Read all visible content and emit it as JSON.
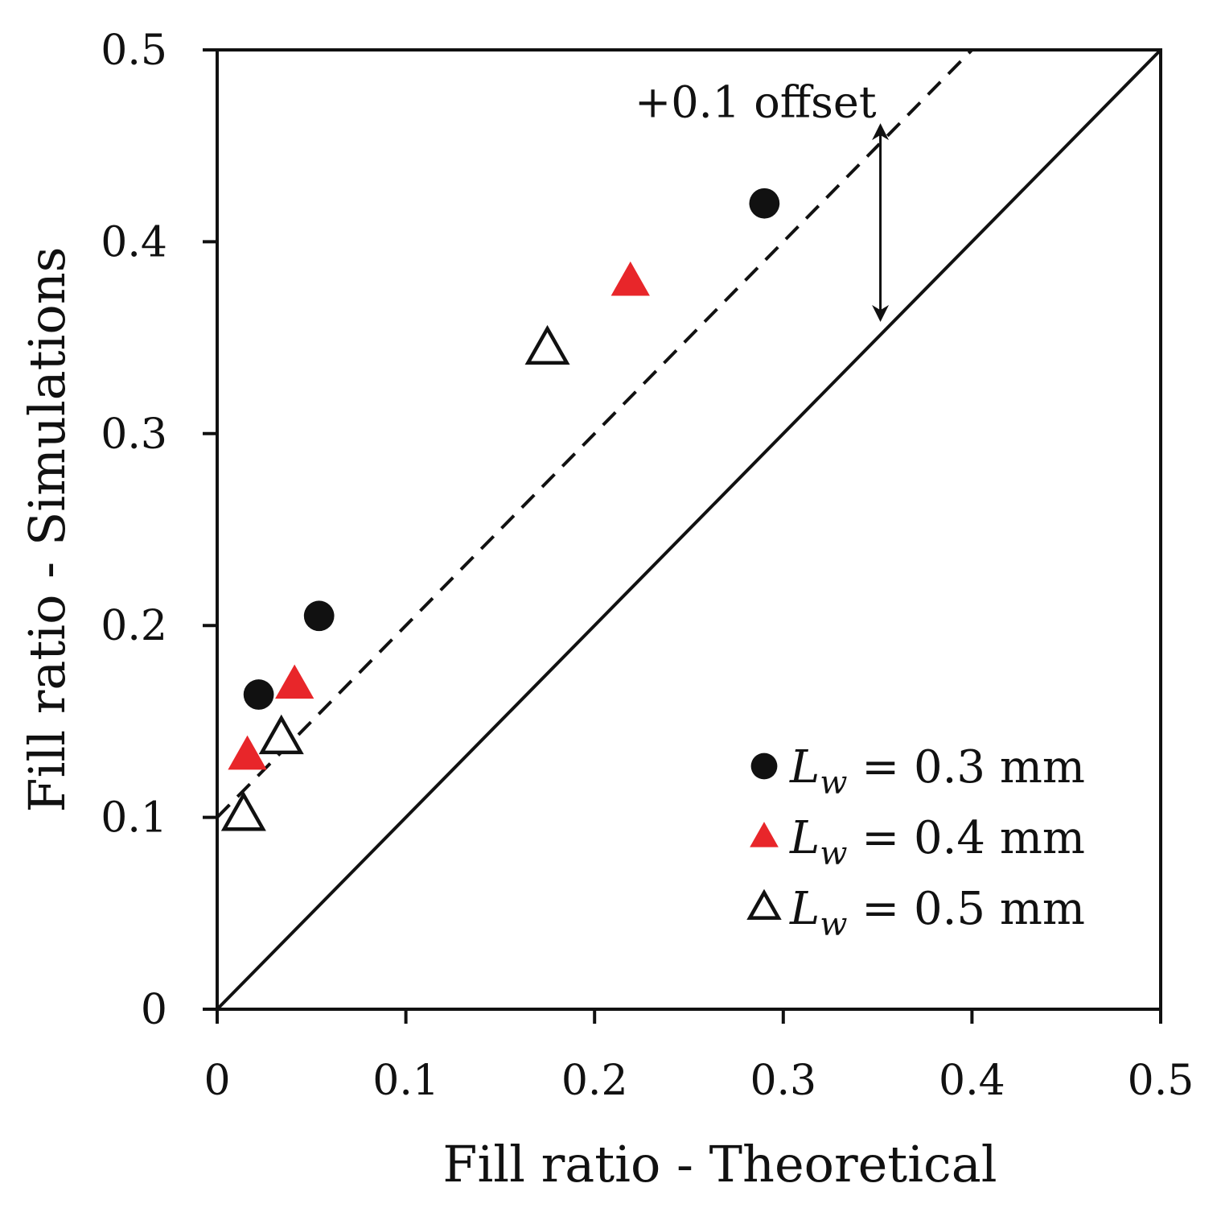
{
  "chart_data": {
    "type": "scatter",
    "title": "",
    "xlabel": "Fill ratio - Theoretical",
    "ylabel": "Fill ratio - Simulations",
    "xlim": [
      0,
      0.5
    ],
    "ylim": [
      0,
      0.5
    ],
    "x_ticks": [
      "0",
      "0.1",
      "0.2",
      "0.3",
      "0.4",
      "0.5"
    ],
    "y_ticks": [
      "0",
      "0.1",
      "0.2",
      "0.3",
      "0.4",
      "0.5"
    ],
    "grid": false,
    "legend_position": "bottom-right",
    "series": [
      {
        "name": "Lw = 0.3 mm",
        "legend_var": "L",
        "legend_sub": "w",
        "legend_rest": " = 0.3 mm",
        "marker": "circle-filled",
        "color": "#111111",
        "points": [
          {
            "x": 0.022,
            "y": 0.164
          },
          {
            "x": 0.054,
            "y": 0.205
          },
          {
            "x": 0.29,
            "y": 0.42
          }
        ]
      },
      {
        "name": "Lw = 0.4 mm",
        "legend_var": "L",
        "legend_sub": "w",
        "legend_rest": " = 0.4 mm",
        "marker": "triangle-filled",
        "color": "#e8262a",
        "points": [
          {
            "x": 0.016,
            "y": 0.132
          },
          {
            "x": 0.041,
            "y": 0.169
          },
          {
            "x": 0.219,
            "y": 0.379
          }
        ]
      },
      {
        "name": "Lw = 0.5 mm",
        "legend_var": "L",
        "legend_sub": "w",
        "legend_rest": " = 0.5 mm",
        "marker": "triangle-open",
        "color": "#111111",
        "points": [
          {
            "x": 0.014,
            "y": 0.101
          },
          {
            "x": 0.034,
            "y": 0.141
          },
          {
            "x": 0.175,
            "y": 0.344
          }
        ]
      }
    ],
    "reference_lines": [
      {
        "name": "y = x",
        "style": "solid",
        "slope": 1,
        "intercept": 0
      },
      {
        "name": "+0.1 offset",
        "style": "dashed",
        "slope": 1,
        "intercept": 0.1
      }
    ],
    "annotations": [
      {
        "text": "+0.1 offset",
        "arrow_x": 0.36,
        "arrow_y_from": 0.36,
        "arrow_y_to": 0.46
      }
    ]
  }
}
